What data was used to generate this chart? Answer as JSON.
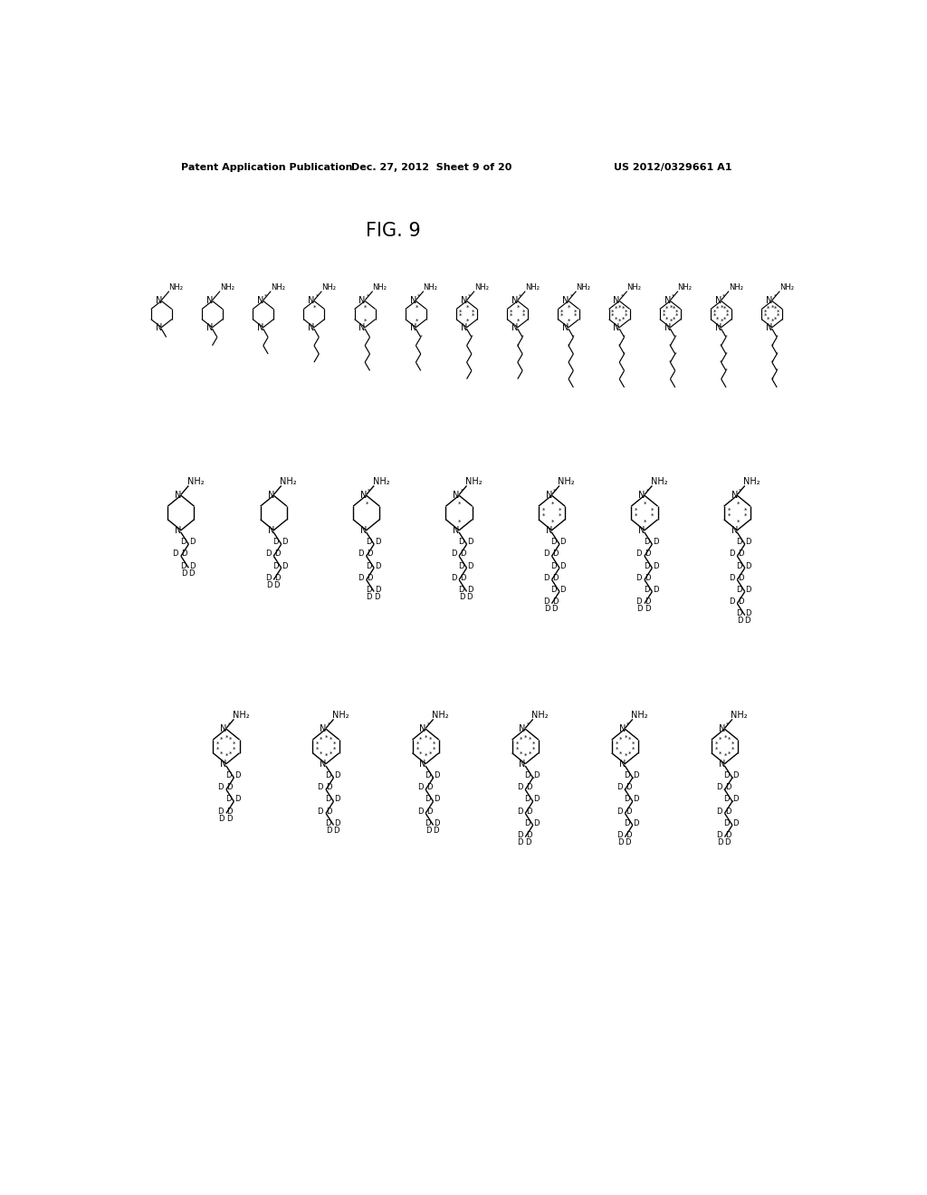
{
  "header_left": "Patent Application Publication",
  "header_center": "Dec. 27, 2012  Sheet 9 of 20",
  "header_right": "US 2012/0329661 A1",
  "figure_label": "FIG. 9",
  "background_color": "#ffffff",
  "text_color": "#000000",
  "line_color": "#000000"
}
